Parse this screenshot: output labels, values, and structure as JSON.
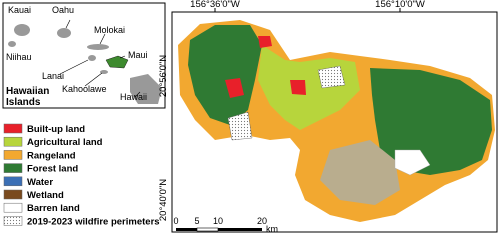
{
  "inset": {
    "islands": [
      "Kauai",
      "Oahu",
      "Niihau",
      "Molokai",
      "Maui",
      "Lanai",
      "Kahoolawe",
      "Hawaii"
    ],
    "title_lines": [
      "Hawaiian",
      "Islands"
    ]
  },
  "legend": [
    {
      "label": "Built-up land",
      "color": "#e8202a"
    },
    {
      "label": "Agricultural land",
      "color": "#b7d53c"
    },
    {
      "label": "Rangeland",
      "color": "#f2a830"
    },
    {
      "label": "Forest land",
      "color": "#2f7a33"
    },
    {
      "label": "Water",
      "color": "#3b6fb5"
    },
    {
      "label": "Wetland",
      "color": "#7a4a1e"
    },
    {
      "label": "Barren land",
      "color": "#ffffff"
    },
    {
      "label": "2019-2023 wildfire perimeters",
      "color": "dotted"
    }
  ],
  "coordinates": {
    "top": [
      "156°36'0\"W",
      "156°10'0\"W"
    ],
    "left": [
      "20°56'0\"N",
      "20°40'0\"N"
    ]
  },
  "scale_bar": {
    "ticks": [
      "0",
      "5",
      "10",
      "20"
    ],
    "unit": "km"
  }
}
